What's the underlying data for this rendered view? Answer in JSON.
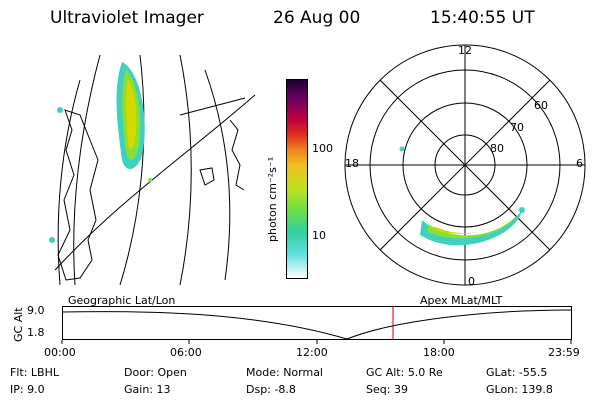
{
  "header": {
    "instrument": "Ultraviolet Imager",
    "date": "26 Aug 00",
    "time": "15:40:55 UT"
  },
  "colorbar": {
    "label": "photon cm⁻²s⁻¹",
    "ticks": [
      "100",
      "10"
    ]
  },
  "polar": {
    "mlt_labels": [
      "12",
      "18",
      "6",
      "0"
    ],
    "lat_labels": [
      "60",
      "70",
      "80"
    ]
  },
  "timeline": {
    "left_caption": "Geographic Lat/Lon",
    "right_caption": "Apex MLat/MLT",
    "axis_title": "GC Alt",
    "y_ticks": [
      "9.0",
      "1.8"
    ],
    "x_ticks": [
      "00:00",
      "06:00",
      "12:00",
      "18:00",
      "23:59"
    ]
  },
  "status": [
    [
      {
        "label": "Flt:",
        "value": "LBHL"
      },
      {
        "label": "IP:",
        "value": "9.0"
      }
    ],
    [
      {
        "label": "Door:",
        "value": "Open"
      },
      {
        "label": "Gain:",
        "value": "13"
      }
    ],
    [
      {
        "label": "Mode:",
        "value": "Normal"
      },
      {
        "label": "Dsp:",
        "value": "-8.8"
      }
    ],
    [
      {
        "label": "GC Alt:",
        "value": "5.0 Re"
      },
      {
        "label": "Seq:",
        "value": "39"
      }
    ],
    [
      {
        "label": "GLat:",
        "value": "-55.5"
      },
      {
        "label": "GLon:",
        "value": "139.8"
      }
    ]
  ],
  "colors": {
    "accent_line": "#cc0000",
    "emission_core": "#d8d800",
    "emission_mid": "#88e030",
    "emission_edge": "#40d0c0"
  }
}
